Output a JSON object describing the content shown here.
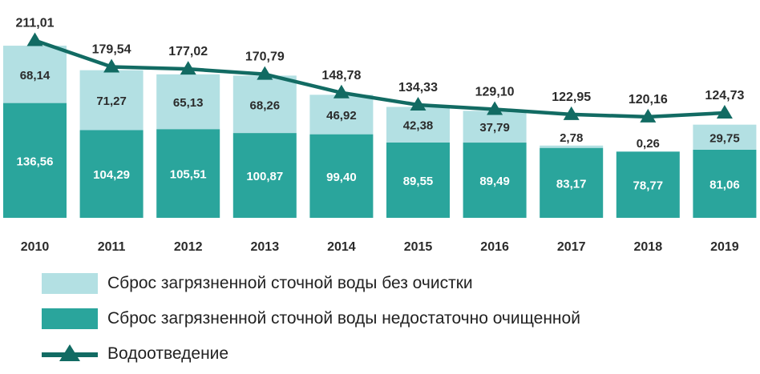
{
  "chart_data": {
    "type": "bar",
    "stacked": true,
    "categories": [
      "2010",
      "2011",
      "2012",
      "2013",
      "2014",
      "2015",
      "2016",
      "2017",
      "2018",
      "2019"
    ],
    "series": [
      {
        "name": "Сброс загрязненной сточной воды недостаточно очищенной",
        "values": [
          136.56,
          104.29,
          105.51,
          100.87,
          99.4,
          89.55,
          89.49,
          83.17,
          78.77,
          81.06
        ],
        "labels": [
          "136,56",
          "104,29",
          "105,51",
          "100,87",
          "99,40",
          "89,55",
          "89,49",
          "83,17",
          "78,77",
          "81,06"
        ],
        "color": "#2aa59c"
      },
      {
        "name": "Сброс загрязненной сточной воды без очистки",
        "values": [
          68.14,
          71.27,
          65.13,
          68.26,
          46.92,
          42.38,
          37.79,
          2.78,
          0.26,
          29.75
        ],
        "labels": [
          "68,14",
          "71,27",
          "65,13",
          "68,26",
          "46,92",
          "42,38",
          "37,79",
          "2,78",
          "0,26",
          "29,75"
        ],
        "color": "#b3e0e3"
      },
      {
        "name": "Водоотведение",
        "type": "line",
        "values": [
          211.01,
          179.54,
          177.02,
          170.79,
          148.78,
          134.33,
          129.1,
          122.95,
          120.16,
          124.73
        ],
        "labels": [
          "211,01",
          "179,54",
          "177,02",
          "170,79",
          "148,78",
          "134,33",
          "129,10",
          "122,95",
          "120,16",
          "124,73"
        ],
        "color": "#126b63"
      }
    ],
    "ylim": [
      0,
      225
    ],
    "grid": false,
    "legend_position": "bottom"
  },
  "legend": {
    "item1": "Сброс загрязненной сточной воды без очистки",
    "item2": "Сброс загрязненной сточной воды недостаточно очищенной",
    "item3": "Водоотведение"
  }
}
